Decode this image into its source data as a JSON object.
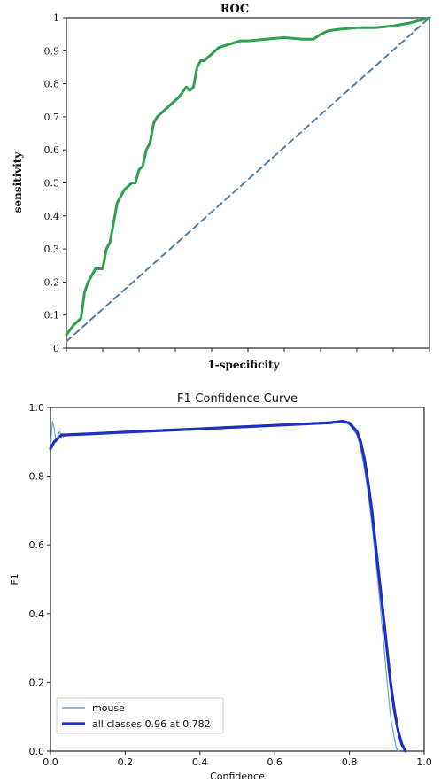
{
  "chart_data": [
    {
      "type": "line",
      "title": "ROC",
      "xlabel": "1-specificity",
      "ylabel": "sensitivity",
      "xlim": [
        0,
        1
      ],
      "ylim": [
        0,
        1
      ],
      "yticks": [
        "0",
        "0.1",
        "0.2",
        "0.3",
        "0.4",
        "0.5",
        "0.6",
        "0.7",
        "0.8",
        "0.9",
        "1"
      ],
      "xtick_labels_shown": false,
      "grid": false,
      "series": [
        {
          "style": "solid",
          "color": "#2e9e4f",
          "x": [
            0.0,
            0.02,
            0.04,
            0.05,
            0.06,
            0.07,
            0.08,
            0.1,
            0.11,
            0.12,
            0.13,
            0.14,
            0.15,
            0.16,
            0.18,
            0.19,
            0.2,
            0.21,
            0.22,
            0.23,
            0.24,
            0.25,
            0.26,
            0.27,
            0.28,
            0.3,
            0.31,
            0.33,
            0.34,
            0.35,
            0.36,
            0.37,
            0.38,
            0.4,
            0.42,
            0.45,
            0.48,
            0.5,
            0.55,
            0.6,
            0.65,
            0.68,
            0.7,
            0.72,
            0.75,
            0.8,
            0.85,
            0.9,
            0.95,
            1.0
          ],
          "y": [
            0.04,
            0.07,
            0.09,
            0.17,
            0.2,
            0.22,
            0.24,
            0.24,
            0.3,
            0.32,
            0.38,
            0.44,
            0.46,
            0.48,
            0.5,
            0.5,
            0.54,
            0.55,
            0.6,
            0.62,
            0.68,
            0.7,
            0.71,
            0.72,
            0.73,
            0.75,
            0.76,
            0.79,
            0.78,
            0.79,
            0.85,
            0.87,
            0.87,
            0.89,
            0.91,
            0.92,
            0.93,
            0.93,
            0.935,
            0.94,
            0.935,
            0.935,
            0.95,
            0.96,
            0.965,
            0.97,
            0.97,
            0.975,
            0.985,
            1.0
          ]
        },
        {
          "style": "dashed",
          "color": "#4f7fa6",
          "x": [
            0.0,
            1.0
          ],
          "y": [
            0.02,
            1.0
          ]
        }
      ]
    },
    {
      "type": "line",
      "title": "F1-Confidence Curve",
      "xlabel": "Confidence",
      "ylabel": "F1",
      "xlim": [
        0,
        1
      ],
      "ylim": [
        0,
        1
      ],
      "xticks": [
        "0.0",
        "0.2",
        "0.4",
        "0.6",
        "0.8",
        "1.0"
      ],
      "yticks": [
        "0.0",
        "0.2",
        "0.4",
        "0.6",
        "0.8",
        "1.0"
      ],
      "grid": false,
      "legend": "bottom-left",
      "series": [
        {
          "name": "mouse",
          "color": "#6fa3d0",
          "width": "thin",
          "x": [
            0.0,
            0.005,
            0.01,
            0.015,
            0.02,
            0.025,
            0.03,
            0.04,
            0.1,
            0.2,
            0.3,
            0.4,
            0.5,
            0.6,
            0.7,
            0.75,
            0.78,
            0.8,
            0.82,
            0.83,
            0.84,
            0.85,
            0.86,
            0.87,
            0.88,
            0.89,
            0.9,
            0.91,
            0.92,
            0.925,
            0.93
          ],
          "y": [
            0.88,
            0.96,
            0.94,
            0.9,
            0.92,
            0.93,
            0.91,
            0.92,
            0.925,
            0.93,
            0.935,
            0.94,
            0.945,
            0.95,
            0.955,
            0.957,
            0.96,
            0.95,
            0.92,
            0.88,
            0.82,
            0.75,
            0.66,
            0.56,
            0.45,
            0.33,
            0.21,
            0.1,
            0.04,
            0.01,
            0.0
          ]
        },
        {
          "name": "all classes 0.96 at 0.782",
          "color": "#1f2fbf",
          "width": "thick",
          "x": [
            0.0,
            0.01,
            0.02,
            0.03,
            0.04,
            0.1,
            0.2,
            0.3,
            0.4,
            0.5,
            0.6,
            0.7,
            0.75,
            0.782,
            0.8,
            0.82,
            0.83,
            0.84,
            0.85,
            0.86,
            0.87,
            0.88,
            0.89,
            0.9,
            0.91,
            0.92,
            0.93,
            0.94,
            0.95
          ],
          "y": [
            0.88,
            0.9,
            0.91,
            0.92,
            0.92,
            0.923,
            0.928,
            0.933,
            0.938,
            0.943,
            0.948,
            0.953,
            0.956,
            0.96,
            0.955,
            0.93,
            0.9,
            0.85,
            0.78,
            0.7,
            0.6,
            0.5,
            0.4,
            0.3,
            0.2,
            0.12,
            0.06,
            0.02,
            0.0
          ]
        }
      ]
    }
  ]
}
